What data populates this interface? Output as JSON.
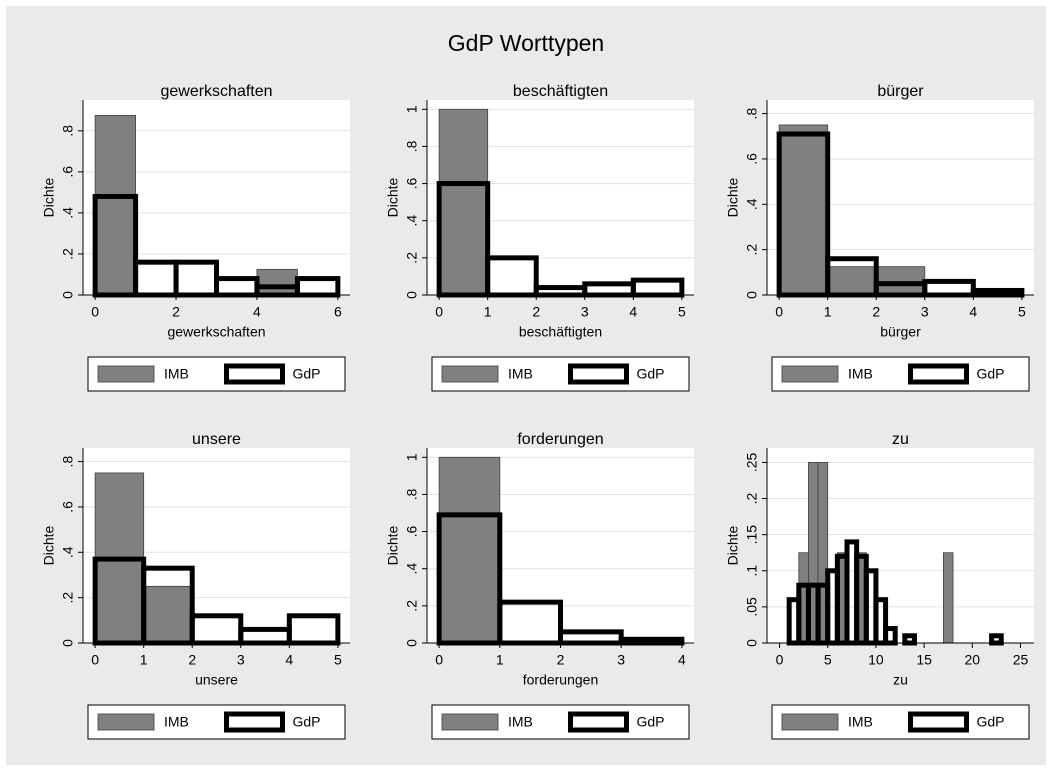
{
  "title": "GdP Worttypen",
  "chart_data": [
    {
      "type": "histogram",
      "title": "gewerkschaften",
      "xlabel": "gewerkschaften",
      "ylabel": "Dichte",
      "xlim": [
        -0.3,
        6.3
      ],
      "xticks": [
        0,
        2,
        4,
        6
      ],
      "ylim": [
        0,
        0.95
      ],
      "yticks": [
        0,
        {
          "value": 0.2,
          "label": ".2"
        },
        {
          "value": 0.4,
          "label": ".4"
        },
        {
          "value": 0.6,
          "label": ".6"
        },
        {
          "value": 0.8,
          "label": ".8"
        }
      ],
      "grid": true,
      "legend": "bottom",
      "series": [
        {
          "name": "IMB",
          "color": "#808080",
          "fill": true,
          "bins": [
            0,
            1,
            2,
            3,
            4,
            5,
            6
          ],
          "values": [
            0.875,
            0,
            0,
            0,
            0.125,
            0
          ]
        },
        {
          "name": "GdP",
          "color": "#000000",
          "fill": false,
          "bins": [
            0,
            1,
            2,
            3,
            4,
            5,
            6
          ],
          "values": [
            0.48,
            0.16,
            0.16,
            0.08,
            0.04,
            0.08
          ]
        }
      ]
    },
    {
      "type": "histogram",
      "title": "beschäftigten",
      "xlabel": "beschäftigten",
      "ylabel": "Dichte",
      "xlim": [
        -0.25,
        5.25
      ],
      "xticks": [
        0,
        1,
        2,
        3,
        4,
        5
      ],
      "ylim": [
        0,
        1.05
      ],
      "yticks": [
        0,
        {
          "value": 0.2,
          "label": ".2"
        },
        {
          "value": 0.4,
          "label": ".4"
        },
        {
          "value": 0.6,
          "label": ".6"
        },
        {
          "value": 0.8,
          "label": ".8"
        },
        1
      ],
      "grid": true,
      "legend": "bottom",
      "series": [
        {
          "name": "IMB",
          "color": "#808080",
          "fill": true,
          "bins": [
            0,
            1,
            2,
            3,
            4,
            5
          ],
          "values": [
            1.0,
            0,
            0,
            0,
            0
          ]
        },
        {
          "name": "GdP",
          "color": "#000000",
          "fill": false,
          "bins": [
            0,
            1,
            2,
            3,
            4,
            5
          ],
          "values": [
            0.6,
            0.2,
            0.04,
            0.06,
            0.08
          ]
        }
      ]
    },
    {
      "type": "histogram",
      "title": "bürger",
      "xlabel": "bürger",
      "ylabel": "Dichte",
      "xlim": [
        -0.25,
        5.25
      ],
      "xticks": [
        0,
        1,
        2,
        3,
        4,
        5
      ],
      "ylim": [
        0,
        0.86
      ],
      "yticks": [
        0,
        {
          "value": 0.2,
          "label": ".2"
        },
        {
          "value": 0.4,
          "label": ".4"
        },
        {
          "value": 0.6,
          "label": ".6"
        },
        {
          "value": 0.8,
          "label": ".8"
        }
      ],
      "grid": true,
      "legend": "bottom",
      "series": [
        {
          "name": "IMB",
          "color": "#808080",
          "fill": true,
          "bins": [
            0,
            1,
            2,
            3,
            4,
            5
          ],
          "values": [
            0.75,
            0.125,
            0.125,
            0,
            0
          ]
        },
        {
          "name": "GdP",
          "color": "#000000",
          "fill": false,
          "bins": [
            0,
            1,
            2,
            3,
            4,
            5
          ],
          "values": [
            0.71,
            0.16,
            0.05,
            0.06,
            0.02
          ]
        }
      ]
    },
    {
      "type": "histogram",
      "title": "unsere",
      "xlabel": "unsere",
      "ylabel": "Dichte",
      "xlim": [
        -0.25,
        5.25
      ],
      "xticks": [
        0,
        1,
        2,
        3,
        4,
        5
      ],
      "ylim": [
        0,
        0.86
      ],
      "yticks": [
        0,
        {
          "value": 0.2,
          "label": ".2"
        },
        {
          "value": 0.4,
          "label": ".4"
        },
        {
          "value": 0.6,
          "label": ".6"
        },
        {
          "value": 0.8,
          "label": ".8"
        }
      ],
      "grid": true,
      "legend": "bottom",
      "series": [
        {
          "name": "IMB",
          "color": "#808080",
          "fill": true,
          "bins": [
            0,
            1,
            2,
            3,
            4,
            5
          ],
          "values": [
            0.75,
            0.25,
            0,
            0,
            0
          ]
        },
        {
          "name": "GdP",
          "color": "#000000",
          "fill": false,
          "bins": [
            0,
            1,
            2,
            3,
            4,
            5
          ],
          "values": [
            0.37,
            0.33,
            0.12,
            0.06,
            0.12
          ]
        }
      ]
    },
    {
      "type": "histogram",
      "title": "forderungen",
      "xlabel": "forderungen",
      "ylabel": "Dichte",
      "xlim": [
        -0.2,
        4.2
      ],
      "xticks": [
        0,
        1,
        2,
        3,
        4
      ],
      "ylim": [
        0,
        1.05
      ],
      "yticks": [
        0,
        {
          "value": 0.2,
          "label": ".2"
        },
        {
          "value": 0.4,
          "label": ".4"
        },
        {
          "value": 0.6,
          "label": ".6"
        },
        {
          "value": 0.8,
          "label": ".8"
        },
        1
      ],
      "grid": true,
      "legend": "bottom",
      "series": [
        {
          "name": "IMB",
          "color": "#808080",
          "fill": true,
          "bins": [
            0,
            1,
            2,
            3,
            4
          ],
          "values": [
            1.0,
            0,
            0,
            0
          ]
        },
        {
          "name": "GdP",
          "color": "#000000",
          "fill": false,
          "bins": [
            0,
            1,
            2,
            3,
            4
          ],
          "values": [
            0.69,
            0.22,
            0.06,
            0.02
          ]
        }
      ]
    },
    {
      "type": "histogram",
      "title": "zu",
      "xlabel": "zu",
      "ylabel": "Dichte",
      "xlim": [
        -1.3,
        26.4
      ],
      "xticks": [
        0,
        5,
        10,
        15,
        20,
        25
      ],
      "ylim": [
        0,
        0.27
      ],
      "yticks": [
        0,
        {
          "value": 0.05,
          "label": ".05"
        },
        {
          "value": 0.1,
          "label": ".1"
        },
        {
          "value": 0.15,
          "label": ".15"
        },
        {
          "value": 0.2,
          "label": ".2"
        },
        {
          "value": 0.25,
          "label": ".25"
        }
      ],
      "grid": true,
      "legend": "bottom",
      "series": [
        {
          "name": "IMB",
          "color": "#808080",
          "fill": true,
          "bins": [
            2,
            3,
            4,
            5,
            6,
            7,
            8,
            9,
            10,
            11,
            12,
            13,
            14,
            15,
            16,
            17,
            18
          ],
          "values": [
            0.125,
            0.25,
            0.25,
            0,
            0.125,
            0,
            0.125,
            0,
            0,
            0,
            0,
            0,
            0,
            0,
            0,
            0.125
          ]
        },
        {
          "name": "GdP",
          "color": "#000000",
          "fill": false,
          "bins": [
            1,
            2,
            3,
            4,
            5,
            6,
            7,
            8,
            9,
            10,
            11,
            12,
            13,
            14,
            15,
            16,
            17,
            18,
            19,
            20,
            21,
            22,
            23
          ],
          "values": [
            0.06,
            0.08,
            0.08,
            0.08,
            0.1,
            0.12,
            0.14,
            0.12,
            0.1,
            0.06,
            0.02,
            0,
            0.01,
            0,
            0,
            0,
            0,
            0,
            0,
            0,
            0,
            0.01
          ]
        }
      ]
    }
  ]
}
